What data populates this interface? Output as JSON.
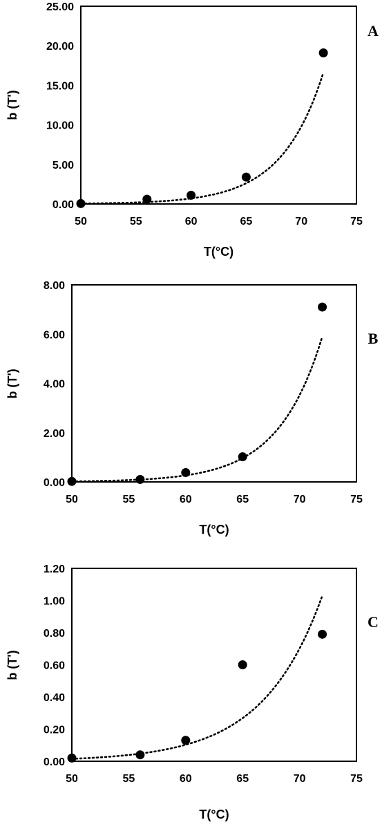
{
  "chart_data": [
    {
      "type": "scatter",
      "panel_label": "A",
      "xlabel": "T(°C)",
      "ylabel": "b (T')",
      "xlim": [
        50,
        75
      ],
      "ylim": [
        0,
        25
      ],
      "x_ticks": [
        "50",
        "55",
        "60",
        "65",
        "70",
        "75"
      ],
      "y_ticks": [
        "0.00",
        "5.00",
        "10.00",
        "15.00",
        "20.00",
        "25.00"
      ],
      "grid": false,
      "series": [
        {
          "x": [
            50,
            56,
            60,
            65,
            72
          ],
          "y": [
            0.05,
            0.6,
            1.1,
            3.4,
            19.1
          ]
        }
      ],
      "trendline": {
        "type": "exponential",
        "style": "dotted",
        "x": [
          50,
          72
        ],
        "y": [
          0.05,
          16.6
        ]
      }
    },
    {
      "type": "scatter",
      "panel_label": "B",
      "xlabel": "T(°C)",
      "ylabel": "b (T')",
      "xlim": [
        50,
        75
      ],
      "ylim": [
        0,
        8
      ],
      "x_ticks": [
        "50",
        "55",
        "60",
        "65",
        "70",
        "75"
      ],
      "y_ticks": [
        "0.00",
        "2.00",
        "4.00",
        "6.00",
        "8.00"
      ],
      "grid": false,
      "series": [
        {
          "x": [
            50,
            56,
            60,
            65,
            72
          ],
          "y": [
            0.02,
            0.1,
            0.38,
            1.02,
            7.1
          ]
        }
      ],
      "trendline": {
        "type": "exponential",
        "style": "dotted",
        "x": [
          50,
          72
        ],
        "y": [
          0.02,
          5.9
        ]
      }
    },
    {
      "type": "scatter",
      "panel_label": "C",
      "xlabel": "T(°C)",
      "ylabel": "b (T')",
      "xlim": [
        50,
        75
      ],
      "ylim": [
        0,
        1.2
      ],
      "x_ticks": [
        "50",
        "55",
        "60",
        "65",
        "70",
        "75"
      ],
      "y_ticks": [
        "0.00",
        "0.20",
        "0.40",
        "0.60",
        "0.80",
        "1.00",
        "1.20"
      ],
      "grid": false,
      "series": [
        {
          "x": [
            50,
            56,
            60,
            65,
            72
          ],
          "y": [
            0.02,
            0.04,
            0.13,
            0.6,
            0.79
          ]
        }
      ],
      "trendline": {
        "type": "exponential",
        "style": "dotted",
        "x": [
          50,
          72
        ],
        "y": [
          0.015,
          1.03
        ]
      }
    }
  ]
}
